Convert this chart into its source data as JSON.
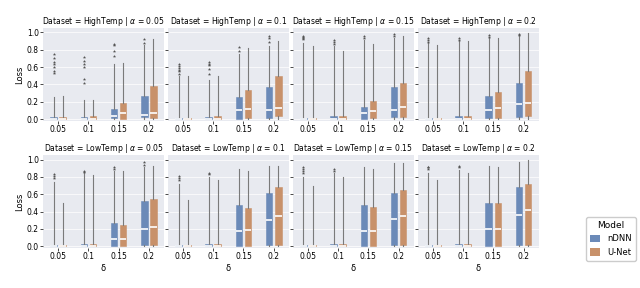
{
  "datasets": [
    "HighTemp",
    "LowTemp"
  ],
  "alphas": [
    "0.05",
    "0.1",
    "0.15",
    "0.2"
  ],
  "deltas": [
    0.05,
    0.1,
    0.15,
    0.2
  ],
  "delta_labels": [
    "0.05",
    "0.1",
    "0.15",
    "0.2"
  ],
  "models": [
    "nDNN",
    "U-Net"
  ],
  "model_colors": [
    "#6b8ab8",
    "#c8916a"
  ],
  "whisker_color": "#555555",
  "background_color": "#e8eaf0",
  "fig_bg": "#ffffff",
  "ylim": [
    -0.02,
    1.05
  ],
  "yticks": [
    0.0,
    0.2,
    0.4,
    0.6,
    0.8,
    1.0
  ],
  "xlabel": "δ",
  "ylabel": "Loss",
  "legend_title": "Model",
  "box_data": {
    "HighTemp": {
      "0.05": {
        "nDNN": {
          "0.05": {
            "q1": 0.0,
            "med": 0.005,
            "q3": 0.02,
            "whislo": 0.0,
            "whishi": 0.25,
            "fliers": [
              0.53,
              0.55,
              0.6,
              0.63,
              0.66,
              0.7,
              0.75
            ]
          },
          "0.1": {
            "q1": 0.0,
            "med": 0.005,
            "q3": 0.02,
            "whislo": 0.0,
            "whishi": 0.22,
            "fliers": [
              0.42,
              0.46,
              0.6,
              0.63,
              0.67,
              0.72
            ]
          },
          "0.15": {
            "q1": 0.01,
            "med": 0.04,
            "q3": 0.12,
            "whislo": 0.0,
            "whishi": 0.64,
            "fliers": [
              0.73,
              0.78,
              0.85,
              0.86
            ]
          },
          "0.2": {
            "q1": 0.02,
            "med": 0.05,
            "q3": 0.27,
            "whislo": 0.0,
            "whishi": 0.85,
            "fliers": [
              0.88,
              0.92
            ]
          }
        },
        "U-Net": {
          "0.05": {
            "q1": 0.0,
            "med": 0.005,
            "q3": 0.02,
            "whislo": 0.0,
            "whishi": 0.26,
            "fliers": []
          },
          "0.1": {
            "q1": 0.0,
            "med": 0.005,
            "q3": 0.03,
            "whislo": 0.0,
            "whishi": 0.22,
            "fliers": []
          },
          "0.15": {
            "q1": 0.005,
            "med": 0.07,
            "q3": 0.19,
            "whislo": 0.0,
            "whishi": 0.65,
            "fliers": []
          },
          "0.2": {
            "q1": 0.01,
            "med": 0.07,
            "q3": 0.38,
            "whislo": 0.0,
            "whishi": 0.92,
            "fliers": []
          }
        }
      },
      "0.1": {
        "nDNN": {
          "0.05": {
            "q1": 0.0,
            "med": 0.003,
            "q3": 0.015,
            "whislo": 0.0,
            "whishi": 0.5,
            "fliers": [
              0.52,
              0.55,
              0.57,
              0.59,
              0.61,
              0.63
            ]
          },
          "0.1": {
            "q1": 0.0,
            "med": 0.005,
            "q3": 0.025,
            "whislo": 0.0,
            "whishi": 0.45,
            "fliers": [
              0.52,
              0.58,
              0.62,
              0.64,
              0.66
            ]
          },
          "0.15": {
            "q1": 0.005,
            "med": 0.1,
            "q3": 0.25,
            "whislo": 0.0,
            "whishi": 0.75,
            "fliers": [
              0.79,
              0.83
            ]
          },
          "0.2": {
            "q1": 0.01,
            "med": 0.11,
            "q3": 0.37,
            "whislo": 0.0,
            "whishi": 0.84,
            "fliers": [
              0.89,
              0.93,
              0.96
            ]
          }
        },
        "U-Net": {
          "0.05": {
            "q1": 0.0,
            "med": 0.003,
            "q3": 0.015,
            "whislo": 0.0,
            "whishi": 0.5,
            "fliers": []
          },
          "0.1": {
            "q1": 0.0,
            "med": 0.005,
            "q3": 0.04,
            "whislo": 0.0,
            "whishi": 0.5,
            "fliers": []
          },
          "0.15": {
            "q1": 0.01,
            "med": 0.12,
            "q3": 0.34,
            "whislo": 0.0,
            "whishi": 0.82,
            "fliers": []
          },
          "0.2": {
            "q1": 0.03,
            "med": 0.13,
            "q3": 0.5,
            "whislo": 0.0,
            "whishi": 0.9,
            "fliers": []
          }
        }
      },
      "0.15": {
        "nDNN": {
          "0.05": {
            "q1": 0.0,
            "med": 0.002,
            "q3": 0.008,
            "whislo": 0.0,
            "whishi": 0.88,
            "fliers": [
              0.92,
              0.94,
              0.95,
              0.96
            ]
          },
          "0.1": {
            "q1": 0.0,
            "med": 0.004,
            "q3": 0.04,
            "whislo": 0.0,
            "whishi": 0.84,
            "fliers": [
              0.86,
              0.89,
              0.91
            ]
          },
          "0.15": {
            "q1": 0.005,
            "med": 0.07,
            "q3": 0.14,
            "whislo": 0.0,
            "whishi": 0.91,
            "fliers": [
              0.94,
              0.96
            ]
          },
          "0.2": {
            "q1": 0.02,
            "med": 0.1,
            "q3": 0.37,
            "whislo": 0.0,
            "whishi": 0.93,
            "fliers": [
              0.96,
              0.98
            ]
          }
        },
        "U-Net": {
          "0.05": {
            "q1": 0.0,
            "med": 0.002,
            "q3": 0.008,
            "whislo": 0.0,
            "whishi": 0.84,
            "fliers": []
          },
          "0.1": {
            "q1": 0.0,
            "med": 0.004,
            "q3": 0.04,
            "whislo": 0.0,
            "whishi": 0.78,
            "fliers": []
          },
          "0.15": {
            "q1": 0.01,
            "med": 0.09,
            "q3": 0.21,
            "whislo": 0.0,
            "whishi": 0.87,
            "fliers": []
          },
          "0.2": {
            "q1": 0.02,
            "med": 0.14,
            "q3": 0.42,
            "whislo": 0.0,
            "whishi": 0.96,
            "fliers": []
          }
        }
      },
      "0.2": {
        "nDNN": {
          "0.05": {
            "q1": 0.0,
            "med": 0.002,
            "q3": 0.007,
            "whislo": 0.0,
            "whishi": 0.88,
            "fliers": [
              0.89,
              0.91,
              0.93
            ]
          },
          "0.1": {
            "q1": 0.0,
            "med": 0.004,
            "q3": 0.035,
            "whislo": 0.0,
            "whishi": 0.9,
            "fliers": [
              0.91,
              0.93
            ]
          },
          "0.15": {
            "q1": 0.008,
            "med": 0.1,
            "q3": 0.26,
            "whislo": 0.0,
            "whishi": 0.93,
            "fliers": [
              0.95,
              0.97
            ]
          },
          "0.2": {
            "q1": 0.02,
            "med": 0.17,
            "q3": 0.42,
            "whislo": 0.0,
            "whishi": 0.96,
            "fliers": [
              0.97,
              0.98
            ]
          }
        },
        "U-Net": {
          "0.05": {
            "q1": 0.0,
            "med": 0.002,
            "q3": 0.007,
            "whislo": 0.0,
            "whishi": 0.85,
            "fliers": []
          },
          "0.1": {
            "q1": 0.0,
            "med": 0.004,
            "q3": 0.04,
            "whislo": 0.0,
            "whishi": 0.9,
            "fliers": []
          },
          "0.15": {
            "q1": 0.01,
            "med": 0.13,
            "q3": 0.31,
            "whislo": 0.0,
            "whishi": 0.94,
            "fliers": []
          },
          "0.2": {
            "q1": 0.03,
            "med": 0.19,
            "q3": 0.55,
            "whislo": 0.0,
            "whishi": 0.99,
            "fliers": []
          }
        }
      }
    },
    "LowTemp": {
      "0.05": {
        "nDNN": {
          "0.05": {
            "q1": 0.0,
            "med": 0.003,
            "q3": 0.015,
            "whislo": 0.0,
            "whishi": 0.74,
            "fliers": [
              0.79,
              0.81,
              0.83
            ]
          },
          "0.1": {
            "q1": 0.0,
            "med": 0.005,
            "q3": 0.03,
            "whislo": 0.0,
            "whishi": 0.84,
            "fliers": [
              0.86,
              0.87
            ]
          },
          "0.15": {
            "q1": 0.008,
            "med": 0.09,
            "q3": 0.27,
            "whislo": 0.0,
            "whishi": 0.87,
            "fliers": [
              0.89,
              0.91
            ]
          },
          "0.2": {
            "q1": 0.015,
            "med": 0.2,
            "q3": 0.52,
            "whislo": 0.0,
            "whishi": 0.91,
            "fliers": [
              0.94,
              0.97
            ]
          }
        },
        "U-Net": {
          "0.05": {
            "q1": 0.0,
            "med": 0.003,
            "q3": 0.015,
            "whislo": 0.0,
            "whishi": 0.5,
            "fliers": []
          },
          "0.1": {
            "q1": 0.0,
            "med": 0.005,
            "q3": 0.03,
            "whislo": 0.0,
            "whishi": 0.82,
            "fliers": []
          },
          "0.15": {
            "q1": 0.005,
            "med": 0.08,
            "q3": 0.25,
            "whislo": 0.0,
            "whishi": 0.87,
            "fliers": []
          },
          "0.2": {
            "q1": 0.01,
            "med": 0.22,
            "q3": 0.55,
            "whislo": 0.0,
            "whishi": 0.93,
            "fliers": []
          }
        }
      },
      "0.1": {
        "nDNN": {
          "0.05": {
            "q1": 0.0,
            "med": 0.003,
            "q3": 0.015,
            "whislo": 0.0,
            "whishi": 0.72,
            "fliers": [
              0.77,
              0.79,
              0.81
            ]
          },
          "0.1": {
            "q1": 0.0,
            "med": 0.005,
            "q3": 0.025,
            "whislo": 0.0,
            "whishi": 0.8,
            "fliers": [
              0.83,
              0.85
            ]
          },
          "0.15": {
            "q1": 0.008,
            "med": 0.18,
            "q3": 0.48,
            "whislo": 0.0,
            "whishi": 0.89,
            "fliers": []
          },
          "0.2": {
            "q1": 0.015,
            "med": 0.3,
            "q3": 0.62,
            "whislo": 0.0,
            "whishi": 0.93,
            "fliers": []
          }
        },
        "U-Net": {
          "0.05": {
            "q1": 0.0,
            "med": 0.003,
            "q3": 0.015,
            "whislo": 0.0,
            "whishi": 0.53,
            "fliers": []
          },
          "0.1": {
            "q1": 0.0,
            "med": 0.005,
            "q3": 0.03,
            "whislo": 0.0,
            "whishi": 0.77,
            "fliers": []
          },
          "0.15": {
            "q1": 0.005,
            "med": 0.19,
            "q3": 0.44,
            "whislo": 0.0,
            "whishi": 0.87,
            "fliers": []
          },
          "0.2": {
            "q1": 0.01,
            "med": 0.35,
            "q3": 0.68,
            "whislo": 0.0,
            "whishi": 0.93,
            "fliers": []
          }
        }
      },
      "0.15": {
        "nDNN": {
          "0.05": {
            "q1": 0.0,
            "med": 0.003,
            "q3": 0.015,
            "whislo": 0.0,
            "whishi": 0.8,
            "fliers": [
              0.85,
              0.87,
              0.89,
              0.91
            ]
          },
          "0.1": {
            "q1": 0.0,
            "med": 0.005,
            "q3": 0.03,
            "whislo": 0.0,
            "whishi": 0.84,
            "fliers": [
              0.87,
              0.89
            ]
          },
          "0.15": {
            "q1": 0.008,
            "med": 0.18,
            "q3": 0.48,
            "whislo": 0.0,
            "whishi": 0.91,
            "fliers": []
          },
          "0.2": {
            "q1": 0.015,
            "med": 0.32,
            "q3": 0.62,
            "whislo": 0.0,
            "whishi": 0.96,
            "fliers": []
          }
        },
        "U-Net": {
          "0.05": {
            "q1": 0.0,
            "med": 0.003,
            "q3": 0.015,
            "whislo": 0.0,
            "whishi": 0.7,
            "fliers": []
          },
          "0.1": {
            "q1": 0.0,
            "med": 0.005,
            "q3": 0.03,
            "whislo": 0.0,
            "whishi": 0.8,
            "fliers": []
          },
          "0.15": {
            "q1": 0.005,
            "med": 0.18,
            "q3": 0.45,
            "whislo": 0.0,
            "whishi": 0.89,
            "fliers": []
          },
          "0.2": {
            "q1": 0.01,
            "med": 0.35,
            "q3": 0.65,
            "whislo": 0.0,
            "whishi": 0.96,
            "fliers": []
          }
        }
      },
      "0.2": {
        "nDNN": {
          "0.05": {
            "q1": 0.0,
            "med": 0.003,
            "q3": 0.015,
            "whislo": 0.0,
            "whishi": 0.84,
            "fliers": [
              0.89,
              0.91,
              0.92
            ]
          },
          "0.1": {
            "q1": 0.0,
            "med": 0.005,
            "q3": 0.03,
            "whislo": 0.0,
            "whishi": 0.88,
            "fliers": [
              0.91,
              0.93
            ]
          },
          "0.15": {
            "q1": 0.008,
            "med": 0.2,
            "q3": 0.5,
            "whislo": 0.0,
            "whishi": 0.93,
            "fliers": []
          },
          "0.2": {
            "q1": 0.015,
            "med": 0.36,
            "q3": 0.68,
            "whislo": 0.0,
            "whishi": 0.97,
            "fliers": []
          }
        },
        "U-Net": {
          "0.05": {
            "q1": 0.0,
            "med": 0.003,
            "q3": 0.015,
            "whislo": 0.0,
            "whishi": 0.77,
            "fliers": []
          },
          "0.1": {
            "q1": 0.0,
            "med": 0.005,
            "q3": 0.03,
            "whislo": 0.0,
            "whishi": 0.84,
            "fliers": []
          },
          "0.15": {
            "q1": 0.005,
            "med": 0.2,
            "q3": 0.5,
            "whislo": 0.0,
            "whishi": 0.91,
            "fliers": []
          },
          "0.2": {
            "q1": 0.02,
            "med": 0.42,
            "q3": 0.72,
            "whislo": 0.0,
            "whishi": 0.99,
            "fliers": []
          }
        }
      }
    }
  }
}
